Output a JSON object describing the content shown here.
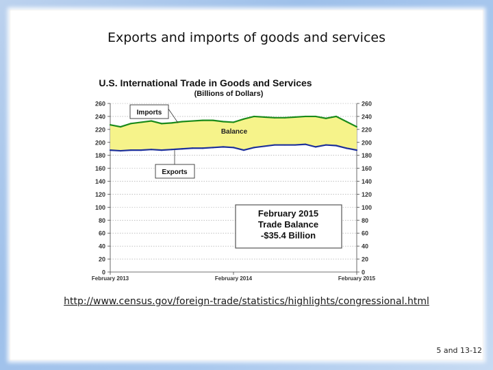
{
  "slide": {
    "title": "Exports and imports of goods and services",
    "url": "http://www.census.gov/foreign-trade/statistics/highlights/congressional.html",
    "page_ref": "5 and 13-12"
  },
  "chart_data": {
    "type": "line",
    "title": "U.S. International Trade in Goods and Services",
    "subtitle": "(Billions of Dollars)",
    "xlabel": "",
    "ylabel": "",
    "ylim": [
      0,
      260
    ],
    "yticks": [
      0,
      20,
      40,
      60,
      80,
      100,
      120,
      140,
      160,
      180,
      200,
      220,
      240,
      260
    ],
    "x_tick_labels": [
      "February 2013",
      "February 2014",
      "February 2015"
    ],
    "x": [
      "Feb 2013",
      "Mar 2013",
      "Apr 2013",
      "May 2013",
      "Jun 2013",
      "Jul 2013",
      "Aug 2013",
      "Sep 2013",
      "Oct 2013",
      "Nov 2013",
      "Dec 2013",
      "Jan 2014",
      "Feb 2014",
      "Mar 2014",
      "Apr 2014",
      "May 2014",
      "Jun 2014",
      "Jul 2014",
      "Aug 2014",
      "Sep 2014",
      "Oct 2014",
      "Nov 2014",
      "Dec 2014",
      "Jan 2015",
      "Feb 2015"
    ],
    "series": [
      {
        "name": "Imports",
        "color": "#1a8a1a",
        "values": [
          227,
          224,
          229,
          231,
          233,
          229,
          230,
          232,
          233,
          234,
          234,
          232,
          231,
          236,
          240,
          239,
          238,
          238,
          239,
          240,
          240,
          237,
          240,
          232,
          224
        ]
      },
      {
        "name": "Exports",
        "color": "#1c2f9a",
        "values": [
          188,
          187,
          188,
          188,
          189,
          188,
          189,
          190,
          191,
          191,
          192,
          193,
          192,
          188,
          192,
          194,
          196,
          196,
          196,
          197,
          193,
          196,
          195,
          191,
          188
        ]
      }
    ],
    "area_label": "Balance",
    "area_color": "#f6f38a",
    "annotation": [
      "February 2015",
      "Trade Balance",
      "-$35.4 Billion"
    ],
    "grid": true
  }
}
